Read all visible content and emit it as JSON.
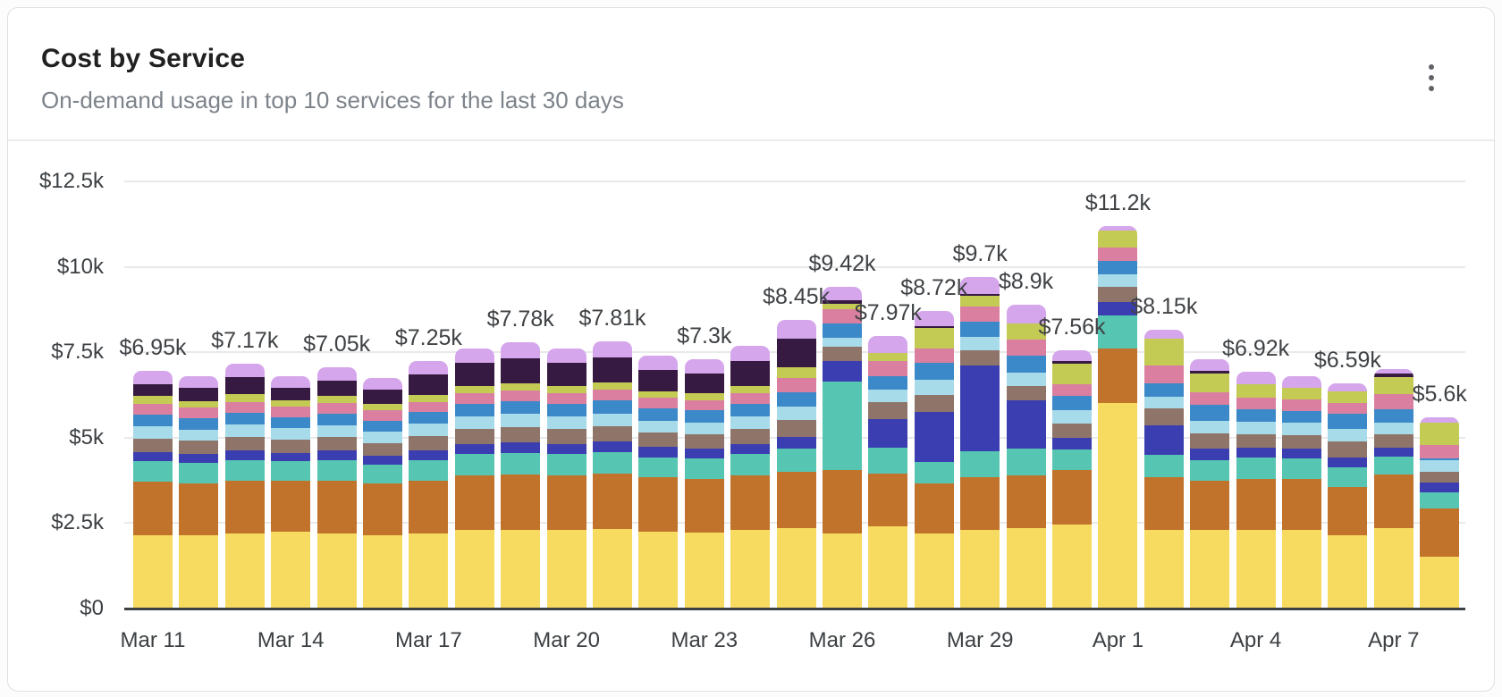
{
  "header": {
    "title": "Cost by Service",
    "subtitle": "On-demand usage in top 10 services for the last 30 days",
    "menu_icon": "kebab-menu-icon"
  },
  "chart_data": {
    "type": "bar",
    "stacked": true,
    "title": "Cost by Service",
    "xlabel": "",
    "ylabel": "",
    "unit": "USD thousands",
    "legend": "none",
    "grid": true,
    "ylim": [
      0,
      12.5
    ],
    "y_ticks": [
      {
        "value": 0,
        "label": "$0"
      },
      {
        "value": 2.5,
        "label": "$2.5k"
      },
      {
        "value": 5,
        "label": "$5k"
      },
      {
        "value": 7.5,
        "label": "$7.5k"
      },
      {
        "value": 10,
        "label": "$10k"
      },
      {
        "value": 12.5,
        "label": "$12.5k"
      }
    ],
    "x_tick_every": 3,
    "categories": [
      "Mar 11",
      "Mar 12",
      "Mar 13",
      "Mar 14",
      "Mar 15",
      "Mar 16",
      "Mar 17",
      "Mar 18",
      "Mar 19",
      "Mar 20",
      "Mar 21",
      "Mar 22",
      "Mar 23",
      "Mar 24",
      "Mar 25",
      "Mar 26",
      "Mar 27",
      "Mar 28",
      "Mar 29",
      "Mar 30",
      "Mar 31",
      "Apr 1",
      "Apr 2",
      "Apr 3",
      "Apr 4",
      "Apr 5",
      "Apr 6",
      "Apr 7",
      "Apr 8"
    ],
    "bar_total_labels": [
      "$6.95k",
      null,
      "$7.17k",
      null,
      "$7.05k",
      null,
      "$7.25k",
      null,
      "$7.78k",
      null,
      "$7.81k",
      null,
      "$7.3k",
      null,
      "$8.45k",
      "$9.42k",
      "$7.97k",
      "$8.72k",
      "$9.7k",
      "$8.9k",
      "$7.56k",
      "$11.2k",
      "$8.15k",
      null,
      "$6.92k",
      null,
      "$6.59k",
      null,
      "$5.6k"
    ],
    "series_order": "bottom-to-top",
    "series": [
      {
        "name": "service-yellow",
        "color": "#F7DB61",
        "values": [
          2.15,
          2.15,
          2.2,
          2.25,
          2.2,
          2.15,
          2.2,
          2.3,
          2.3,
          2.3,
          2.32,
          2.25,
          2.22,
          2.3,
          2.35,
          2.2,
          2.4,
          2.2,
          2.3,
          2.35,
          2.45,
          6.0,
          2.3,
          2.3,
          2.3,
          2.3,
          2.15,
          2.36,
          1.52
        ]
      },
      {
        "name": "service-orange",
        "color": "#C1722B",
        "values": [
          1.55,
          1.5,
          1.55,
          1.5,
          1.55,
          1.5,
          1.55,
          1.6,
          1.62,
          1.6,
          1.62,
          1.58,
          1.56,
          1.6,
          1.65,
          1.85,
          1.55,
          1.45,
          1.55,
          1.55,
          1.6,
          1.62,
          1.55,
          1.45,
          1.5,
          1.5,
          1.4,
          1.57,
          1.41
        ]
      },
      {
        "name": "service-teal",
        "color": "#56C6B2",
        "values": [
          0.6,
          0.6,
          0.6,
          0.55,
          0.6,
          0.55,
          0.6,
          0.62,
          0.63,
          0.62,
          0.63,
          0.6,
          0.6,
          0.62,
          0.68,
          2.6,
          0.75,
          0.65,
          0.75,
          0.78,
          0.6,
          0.95,
          0.65,
          0.6,
          0.62,
          0.6,
          0.58,
          0.52,
          0.47
        ]
      },
      {
        "name": "service-indigo",
        "color": "#3B3EB0",
        "values": [
          0.28,
          0.28,
          0.28,
          0.26,
          0.27,
          0.26,
          0.28,
          0.3,
          0.32,
          0.3,
          0.32,
          0.3,
          0.3,
          0.3,
          0.35,
          0.58,
          0.85,
          1.45,
          2.5,
          1.41,
          0.35,
          0.4,
          0.85,
          0.32,
          0.28,
          0.28,
          0.3,
          0.26,
          0.29
        ]
      },
      {
        "name": "service-taupe",
        "color": "#8F7569",
        "values": [
          0.4,
          0.38,
          0.4,
          0.38,
          0.4,
          0.38,
          0.42,
          0.44,
          0.45,
          0.44,
          0.45,
          0.42,
          0.42,
          0.44,
          0.48,
          0.42,
          0.5,
          0.5,
          0.45,
          0.42,
          0.42,
          0.45,
          0.5,
          0.45,
          0.4,
          0.4,
          0.45,
          0.39,
          0.31
        ]
      },
      {
        "name": "service-light-blue",
        "color": "#A7DBEA",
        "values": [
          0.35,
          0.33,
          0.35,
          0.33,
          0.34,
          0.33,
          0.35,
          0.36,
          0.37,
          0.36,
          0.37,
          0.35,
          0.35,
          0.36,
          0.4,
          0.26,
          0.35,
          0.45,
          0.4,
          0.4,
          0.38,
          0.35,
          0.35,
          0.38,
          0.36,
          0.35,
          0.38,
          0.34,
          0.34
        ]
      },
      {
        "name": "service-blue",
        "color": "#3C89C9",
        "values": [
          0.35,
          0.33,
          0.35,
          0.33,
          0.34,
          0.33,
          0.35,
          0.36,
          0.37,
          0.36,
          0.37,
          0.35,
          0.35,
          0.36,
          0.42,
          0.44,
          0.4,
          0.5,
          0.45,
          0.48,
          0.42,
          0.4,
          0.4,
          0.45,
          0.36,
          0.35,
          0.45,
          0.39,
          0.05
        ]
      },
      {
        "name": "service-pink",
        "color": "#DA7F9F",
        "values": [
          0.32,
          0.3,
          0.32,
          0.3,
          0.31,
          0.3,
          0.3,
          0.32,
          0.33,
          0.32,
          0.33,
          0.31,
          0.3,
          0.32,
          0.42,
          0.4,
          0.45,
          0.4,
          0.45,
          0.48,
          0.35,
          0.4,
          0.5,
          0.38,
          0.35,
          0.35,
          0.3,
          0.45,
          0.39
        ]
      },
      {
        "name": "service-olive",
        "color": "#C4CB55",
        "values": [
          0.22,
          0.2,
          0.22,
          0.2,
          0.21,
          0.2,
          0.2,
          0.2,
          0.21,
          0.2,
          0.21,
          0.2,
          0.2,
          0.2,
          0.3,
          0.16,
          0.22,
          0.62,
          0.3,
          0.48,
          0.6,
          0.5,
          0.8,
          0.55,
          0.4,
          0.32,
          0.35,
          0.5,
          0.65
        ]
      },
      {
        "name": "service-dark-purple",
        "color": "#371A42",
        "values": [
          0.35,
          0.38,
          0.5,
          0.35,
          0.45,
          0.4,
          0.6,
          0.68,
          0.73,
          0.68,
          0.74,
          0.62,
          0.58,
          0.75,
          0.85,
          0.12,
          0.0,
          0.05,
          0.05,
          0.0,
          0.08,
          0.0,
          0.0,
          0.07,
          0.0,
          0.0,
          0.0,
          0.09,
          0.0
        ]
      },
      {
        "name": "service-lavender",
        "color": "#D5A6EC",
        "values": [
          0.38,
          0.35,
          0.4,
          0.35,
          0.38,
          0.35,
          0.4,
          0.42,
          0.45,
          0.42,
          0.45,
          0.42,
          0.42,
          0.45,
          0.55,
          0.39,
          0.5,
          0.45,
          0.5,
          0.55,
          0.31,
          0.13,
          0.25,
          0.35,
          0.35,
          0.35,
          0.23,
          0.13,
          0.17
        ]
      }
    ]
  }
}
